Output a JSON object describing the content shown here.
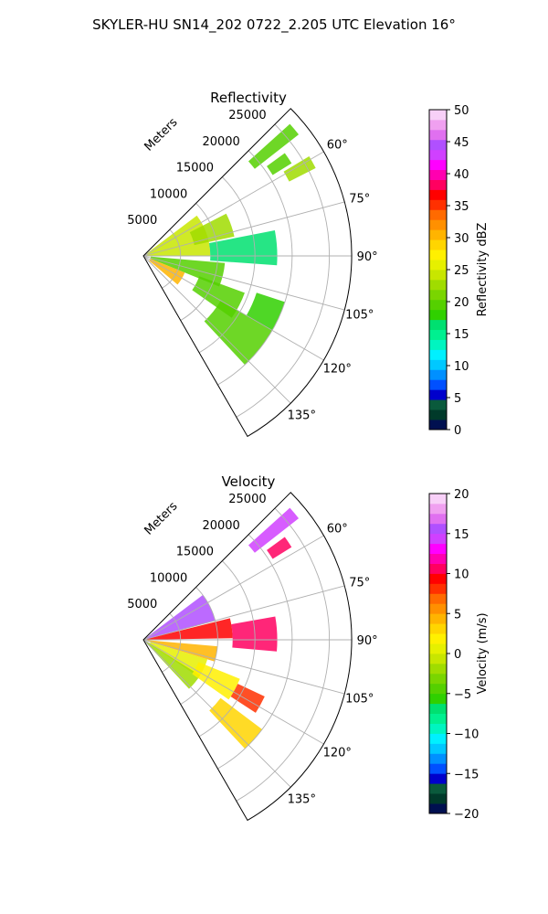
{
  "figure": {
    "title": "SKYLER-HU  SN14_202  0722_2.205 UTC Elevation 16°"
  },
  "chart_data": [
    {
      "type": "polar-sector",
      "title": "Reflectivity",
      "radial_label": "Meters",
      "r_ticks": [
        "5000",
        "10000",
        "15000",
        "20000",
        "25000"
      ],
      "r_tick_values": [
        5000,
        10000,
        15000,
        20000,
        25000
      ],
      "r_max": 28000,
      "theta_range": [
        45,
        150
      ],
      "theta_ticks": [
        "60°",
        "75°",
        "90°",
        "105°",
        "120°",
        "135°"
      ],
      "theta_tick_values": [
        60,
        75,
        90,
        105,
        120,
        135
      ],
      "grid": true,
      "colorbar": {
        "label": "Reflectivity dBZ",
        "range": [
          0,
          50
        ],
        "ticks": [
          "0",
          "5",
          "10",
          "15",
          "20",
          "25",
          "30",
          "35",
          "40",
          "45",
          "50"
        ],
        "tick_values": [
          0,
          5,
          10,
          15,
          20,
          25,
          30,
          35,
          40,
          45,
          50
        ],
        "colors": [
          "#001050",
          "#003a2a",
          "#0a5a3c",
          "#0000cc",
          "#0050ff",
          "#0090ff",
          "#00c8ff",
          "#00f0ff",
          "#00f5c0",
          "#00f090",
          "#00e070",
          "#30d000",
          "#55d000",
          "#7ad500",
          "#a0dc00",
          "#c8e600",
          "#e6f000",
          "#fff000",
          "#ffd500",
          "#ffb400",
          "#ff9000",
          "#ff6a00",
          "#ff3000",
          "#ff0000",
          "#ff0060",
          "#ff00b0",
          "#ff00ff",
          "#d040ff",
          "#b050ff",
          "#e070f0",
          "#f0a0f0",
          "#f8d0f8"
        ]
      },
      "echo_regions": [
        {
          "theta": [
            48,
            52
          ],
          "r": [
            19000,
            26500
          ],
          "value": 20
        },
        {
          "theta": [
            54,
            58
          ],
          "r": [
            20500,
            23500
          ],
          "value": 20
        },
        {
          "theta": [
            59,
            63
          ],
          "r": [
            22000,
            26000
          ],
          "value": 22
        },
        {
          "theta": [
            53,
            90
          ],
          "r": [
            500,
            9000
          ],
          "value": 24
        },
        {
          "theta": [
            63,
            78
          ],
          "r": [
            7000,
            12500
          ],
          "value": 23
        },
        {
          "theta": [
            79,
            94
          ],
          "r": [
            9000,
            18000
          ],
          "value": 17
        },
        {
          "theta": [
            95,
            112
          ],
          "r": [
            1000,
            11000
          ],
          "value": 19
        },
        {
          "theta": [
            110,
            125
          ],
          "r": [
            8000,
            14500
          ],
          "value": 19
        },
        {
          "theta": [
            120,
            137
          ],
          "r": [
            12000,
            20000
          ],
          "value": 19
        },
        {
          "theta": [
            108,
            120
          ],
          "r": [
            16000,
            20000
          ],
          "value": 18
        },
        {
          "theta": [
            112,
            130
          ],
          "r": [
            1000,
            6000
          ],
          "value": 30
        }
      ]
    },
    {
      "type": "polar-sector",
      "title": "Velocity",
      "radial_label": "Meters",
      "r_ticks": [
        "5000",
        "10000",
        "15000",
        "20000",
        "25000"
      ],
      "r_tick_values": [
        5000,
        10000,
        15000,
        20000,
        25000
      ],
      "r_max": 28000,
      "theta_range": [
        45,
        150
      ],
      "theta_ticks": [
        "60°",
        "75°",
        "90°",
        "105°",
        "120°",
        "135°"
      ],
      "theta_tick_values": [
        60,
        75,
        90,
        105,
        120,
        135
      ],
      "grid": true,
      "colorbar": {
        "label": "Velocity (m/s)",
        "range": [
          -20,
          20
        ],
        "ticks": [
          "−20",
          "−15",
          "−10",
          "−5",
          "0",
          "5",
          "10",
          "15",
          "20"
        ],
        "tick_values": [
          -20,
          -15,
          -10,
          -5,
          0,
          5,
          10,
          15,
          20
        ],
        "colors": [
          "#001050",
          "#003a2a",
          "#0a5a3c",
          "#0000cc",
          "#0050ff",
          "#0090ff",
          "#00c8ff",
          "#00f0ff",
          "#00f5c0",
          "#00f090",
          "#00e070",
          "#30d000",
          "#55d000",
          "#7ad500",
          "#a0dc00",
          "#c8e600",
          "#e6f000",
          "#fff000",
          "#ffd500",
          "#ffb400",
          "#ff9000",
          "#ff6a00",
          "#ff3000",
          "#ff0000",
          "#ff0060",
          "#ff00b0",
          "#ff00ff",
          "#d040ff",
          "#b050ff",
          "#e070f0",
          "#f0a0f0",
          "#f8d0f8"
        ]
      },
      "echo_regions": [
        {
          "theta": [
            48,
            52
          ],
          "r": [
            19000,
            26500
          ],
          "value": 14
        },
        {
          "theta": [
            54,
            58
          ],
          "r": [
            20500,
            23500
          ],
          "value": 11
        },
        {
          "theta": [
            53,
            75
          ],
          "r": [
            500,
            10000
          ],
          "value": 16
        },
        {
          "theta": [
            76,
            89
          ],
          "r": [
            500,
            12000
          ],
          "value": 9
        },
        {
          "theta": [
            80,
            95
          ],
          "r": [
            12000,
            18000
          ],
          "value": 10
        },
        {
          "theta": [
            95,
            107
          ],
          "r": [
            500,
            10000
          ],
          "value": 4
        },
        {
          "theta": [
            107,
            124
          ],
          "r": [
            1000,
            9000
          ],
          "value": 1
        },
        {
          "theta": [
            122,
            137
          ],
          "r": [
            500,
            9000
          ],
          "value": -2
        },
        {
          "theta": [
            112,
            125
          ],
          "r": [
            8000,
            14000
          ],
          "value": 2
        },
        {
          "theta": [
            115,
            123
          ],
          "r": [
            14000,
            18000
          ],
          "value": 8
        },
        {
          "theta": [
            127,
            137
          ],
          "r": [
            13000,
            20000
          ],
          "value": 3
        }
      ]
    }
  ]
}
